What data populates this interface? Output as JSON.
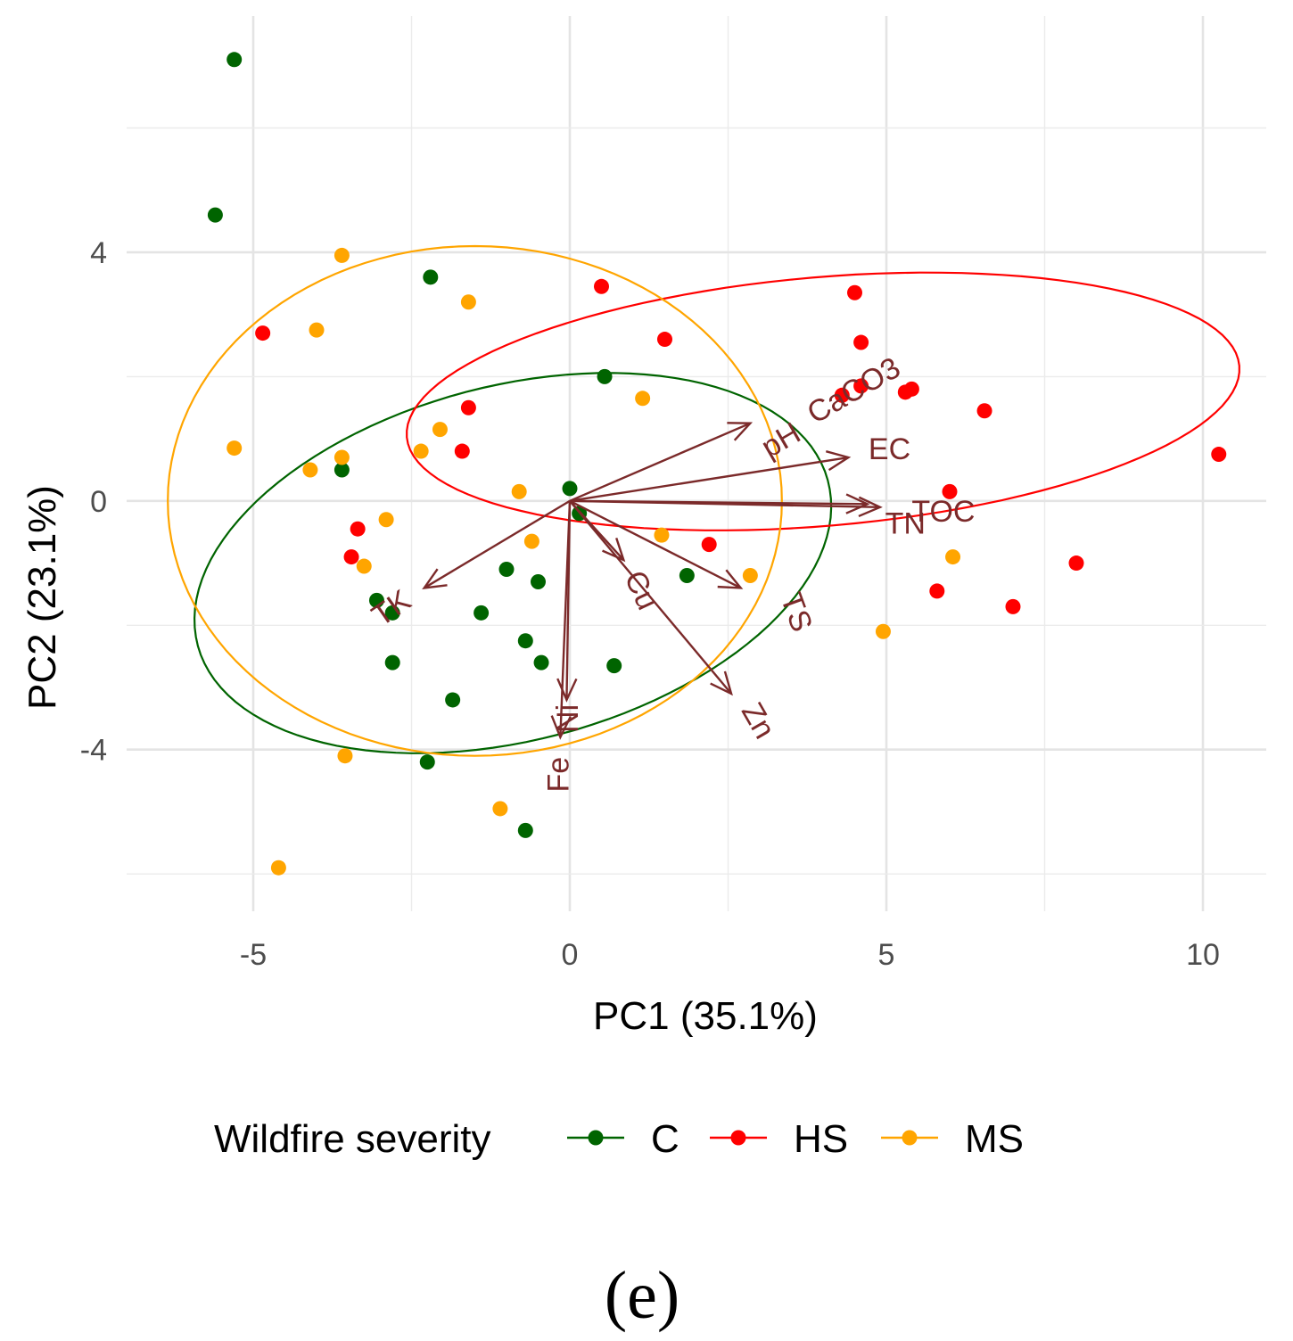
{
  "chart_data": {
    "type": "scatter",
    "subtype": "pca-biplot",
    "title": "",
    "xlabel": "PC1 (35.1%)",
    "ylabel": "PC2 (23.1%)",
    "xlim": [
      -7,
      11
    ],
    "ylim": [
      -6.6,
      7.8
    ],
    "x_ticks": [
      -5,
      0,
      5,
      10
    ],
    "x_tick_labels": [
      "-5",
      "0",
      "5",
      "10"
    ],
    "y_ticks": [
      -4,
      0,
      4
    ],
    "y_tick_labels": [
      "-4",
      "0",
      "4"
    ],
    "grid": true,
    "legend": {
      "title": "Wildfire severity",
      "position": "bottom",
      "entries": [
        "C",
        "HS",
        "MS"
      ]
    },
    "colors": {
      "C": "#006400",
      "HS": "#ff0000",
      "MS": "#ffa500",
      "arrows": "#7b2a2a"
    },
    "series": [
      {
        "name": "C",
        "points": [
          [
            -5.3,
            7.1
          ],
          [
            -5.6,
            4.6
          ],
          [
            -2.2,
            3.6
          ],
          [
            0.55,
            2.0
          ],
          [
            -3.6,
            0.5
          ],
          [
            0.0,
            0.2
          ],
          [
            0.15,
            -0.2
          ],
          [
            -1.0,
            -1.1
          ],
          [
            -0.5,
            -1.3
          ],
          [
            1.85,
            -1.2
          ],
          [
            -3.05,
            -1.6
          ],
          [
            -2.8,
            -1.8
          ],
          [
            -1.4,
            -1.8
          ],
          [
            -0.7,
            -2.25
          ],
          [
            -0.45,
            -2.6
          ],
          [
            0.7,
            -2.65
          ],
          [
            -2.8,
            -2.6
          ],
          [
            -1.85,
            -3.2
          ],
          [
            -2.25,
            -4.2
          ],
          [
            -0.7,
            -5.3
          ]
        ]
      },
      {
        "name": "HS",
        "points": [
          [
            -4.85,
            2.7
          ],
          [
            0.5,
            3.45
          ],
          [
            4.5,
            3.35
          ],
          [
            1.5,
            2.6
          ],
          [
            4.6,
            2.55
          ],
          [
            4.3,
            1.7
          ],
          [
            4.6,
            1.85
          ],
          [
            5.3,
            1.75
          ],
          [
            5.4,
            1.8
          ],
          [
            6.55,
            1.45
          ],
          [
            -1.6,
            1.5
          ],
          [
            -1.7,
            0.8
          ],
          [
            10.25,
            0.75
          ],
          [
            6.0,
            0.15
          ],
          [
            -3.35,
            -0.45
          ],
          [
            -3.45,
            -0.9
          ],
          [
            2.2,
            -0.7
          ],
          [
            8.0,
            -1.0
          ],
          [
            5.8,
            -1.45
          ],
          [
            7.0,
            -1.7
          ]
        ]
      },
      {
        "name": "MS",
        "points": [
          [
            -3.6,
            3.95
          ],
          [
            -1.6,
            3.2
          ],
          [
            -4.0,
            2.75
          ],
          [
            1.15,
            1.65
          ],
          [
            -2.05,
            1.15
          ],
          [
            -2.35,
            0.8
          ],
          [
            -5.3,
            0.85
          ],
          [
            -3.6,
            0.7
          ],
          [
            -4.1,
            0.5
          ],
          [
            -0.8,
            0.15
          ],
          [
            -2.9,
            -0.3
          ],
          [
            -0.6,
            -0.65
          ],
          [
            1.45,
            -0.55
          ],
          [
            -3.25,
            -1.05
          ],
          [
            6.05,
            -0.9
          ],
          [
            2.85,
            -1.2
          ],
          [
            4.95,
            -2.1
          ],
          [
            -3.55,
            -4.1
          ],
          [
            -1.1,
            -4.95
          ],
          [
            -4.6,
            -5.9
          ]
        ]
      }
    ],
    "ellipses": [
      {
        "name": "C",
        "center": [
          -0.9,
          -1.0
        ],
        "semi_axes": [
          2.85,
          5.15
        ],
        "angle_deg": 105
      },
      {
        "name": "HS",
        "center": [
          4.0,
          1.6
        ],
        "semi_axes": [
          6.6,
          2.0
        ],
        "angle_deg": 5
      },
      {
        "name": "MS",
        "center": [
          -1.5,
          0.0
        ],
        "semi_axes": [
          4.85,
          4.1
        ],
        "angle_deg": 0
      }
    ],
    "loadings": [
      {
        "label": "pH",
        "end": [
          2.85,
          1.25
        ],
        "label_pos": [
          3.35,
          0.95
        ],
        "rotation": -30
      },
      {
        "label": "CaCO3",
        "end": [
          2.85,
          1.25
        ],
        "label_pos": [
          4.5,
          1.75
        ],
        "rotation": -30
      },
      {
        "label": "EC",
        "end": [
          4.4,
          0.7
        ],
        "label_pos": [
          5.05,
          0.8
        ],
        "rotation": 0
      },
      {
        "label": "TN",
        "end": [
          4.7,
          -0.05
        ],
        "label_pos": [
          5.3,
          -0.4
        ],
        "rotation": 0
      },
      {
        "label": "TOC",
        "end": [
          4.9,
          -0.1
        ],
        "label_pos": [
          5.9,
          -0.2
        ],
        "rotation": 0
      },
      {
        "label": "TK",
        "end": [
          -2.3,
          -1.4
        ],
        "label_pos": [
          -2.8,
          -1.75
        ],
        "rotation": -35
      },
      {
        "label": "Cu",
        "end": [
          0.85,
          -0.95
        ],
        "label_pos": [
          1.1,
          -1.45
        ],
        "rotation": 65
      },
      {
        "label": "TS",
        "end": [
          2.7,
          -1.4
        ],
        "label_pos": [
          3.55,
          -1.8
        ],
        "rotation": 70
      },
      {
        "label": "Zn",
        "end": [
          2.55,
          -3.1
        ],
        "label_pos": [
          2.95,
          -3.55
        ],
        "rotation": 60
      },
      {
        "label": "Ni",
        "end": [
          -0.05,
          -3.2
        ],
        "label_pos": [
          0.0,
          -3.5
        ],
        "rotation": -90
      },
      {
        "label": "Fe",
        "end": [
          -0.15,
          -3.8
        ],
        "label_pos": [
          -0.15,
          -4.4
        ],
        "rotation": -90
      }
    ],
    "panel_label": "(e)"
  }
}
